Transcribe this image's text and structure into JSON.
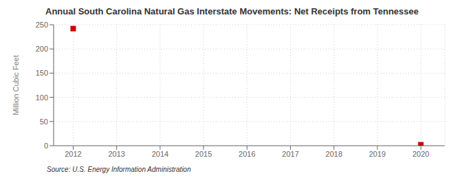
{
  "chart_data": {
    "type": "scatter",
    "title": "Annual South Carolina Natural Gas Interstate Movements: Net Receipts from Tennessee",
    "ylabel": "Million Cubic Feet",
    "source": "Source: U.S. Energy Information Administration",
    "x": [
      2012,
      2020
    ],
    "values": [
      242,
      2
    ],
    "color": "#cc0000",
    "marker": "square",
    "xlim": [
      2011.55,
      2020.55
    ],
    "ylim": [
      0,
      250
    ],
    "xticks": [
      2012,
      2013,
      2014,
      2015,
      2016,
      2017,
      2018,
      2019,
      2020
    ],
    "yticks": [
      0,
      50,
      100,
      150,
      200,
      250
    ],
    "grid": true
  }
}
